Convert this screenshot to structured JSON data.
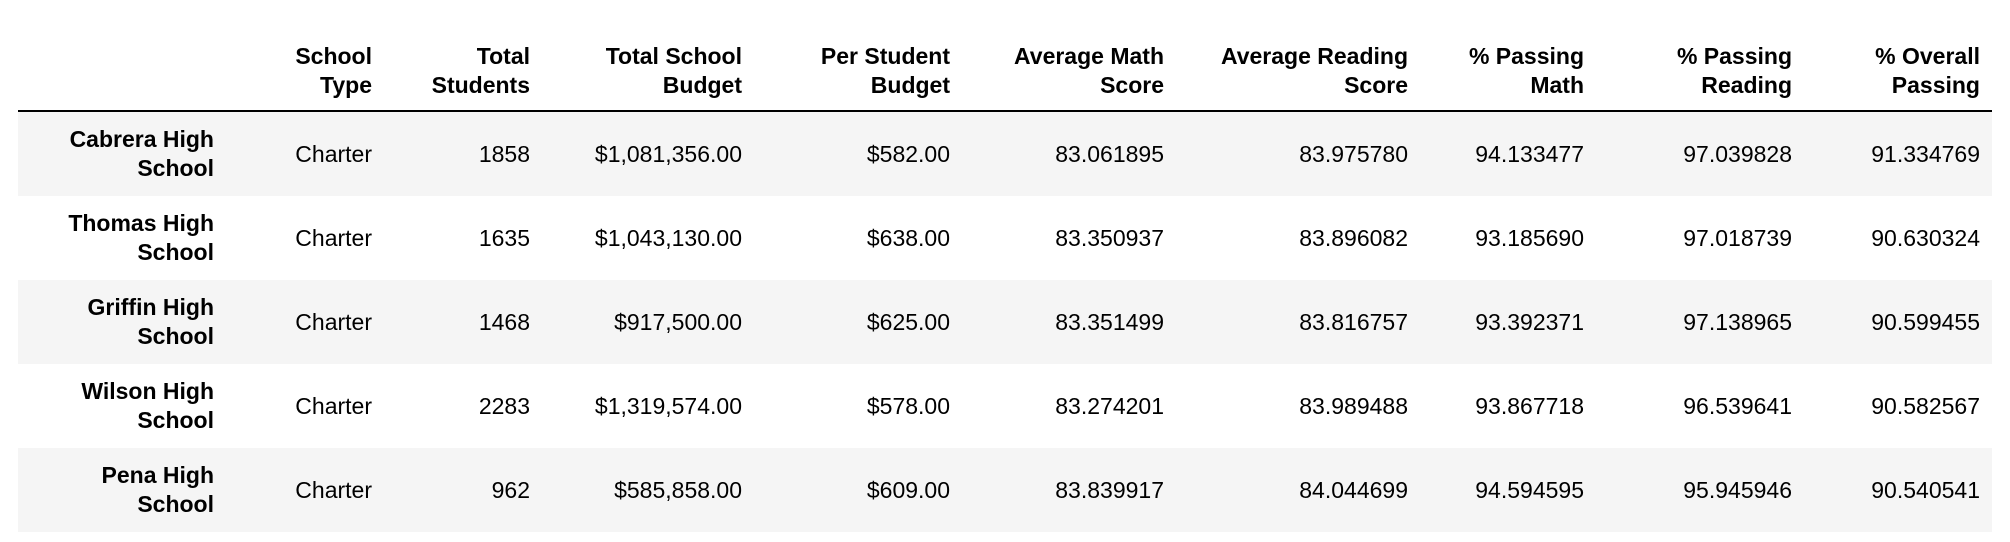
{
  "table": {
    "columns": [
      "",
      "School Type",
      "Total Students",
      "Total School Budget",
      "Per Student Budget",
      "Average Math Score",
      "Average Reading Score",
      "% Passing Math",
      "% Passing Reading",
      "% Overall Passing"
    ],
    "header_lines": [
      [
        "",
        ""
      ],
      [
        "School",
        "Type"
      ],
      [
        "Total",
        "Students"
      ],
      [
        "Total School",
        "Budget"
      ],
      [
        "Per Student",
        "Budget"
      ],
      [
        "Average Math",
        "Score"
      ],
      [
        "Average Reading",
        "Score"
      ],
      [
        "% Passing",
        "Math"
      ],
      [
        "% Passing",
        "Reading"
      ],
      [
        "% Overall",
        "Passing"
      ]
    ],
    "rows": [
      {
        "index_lines": [
          "Cabrera High",
          "School"
        ],
        "cells": [
          "Charter",
          "1858",
          "$1,081,356.00",
          "$582.00",
          "83.061895",
          "83.975780",
          "94.133477",
          "97.039828",
          "91.334769"
        ]
      },
      {
        "index_lines": [
          "Thomas High",
          "School"
        ],
        "cells": [
          "Charter",
          "1635",
          "$1,043,130.00",
          "$638.00",
          "83.350937",
          "83.896082",
          "93.185690",
          "97.018739",
          "90.630324"
        ]
      },
      {
        "index_lines": [
          "Griffin High",
          "School"
        ],
        "cells": [
          "Charter",
          "1468",
          "$917,500.00",
          "$625.00",
          "83.351499",
          "83.816757",
          "93.392371",
          "97.138965",
          "90.599455"
        ]
      },
      {
        "index_lines": [
          "Wilson High",
          "School"
        ],
        "cells": [
          "Charter",
          "2283",
          "$1,319,574.00",
          "$578.00",
          "83.274201",
          "83.989488",
          "93.867718",
          "96.539641",
          "90.582567"
        ]
      },
      {
        "index_lines": [
          "Pena High",
          "School"
        ],
        "cells": [
          "Charter",
          "962",
          "$585,858.00",
          "$609.00",
          "83.839917",
          "84.044699",
          "94.594595",
          "95.945946",
          "90.540541"
        ]
      }
    ]
  },
  "colors": {
    "stripe": "#f5f5f5",
    "background": "#ffffff",
    "text": "#000000",
    "header_rule": "#000000"
  }
}
